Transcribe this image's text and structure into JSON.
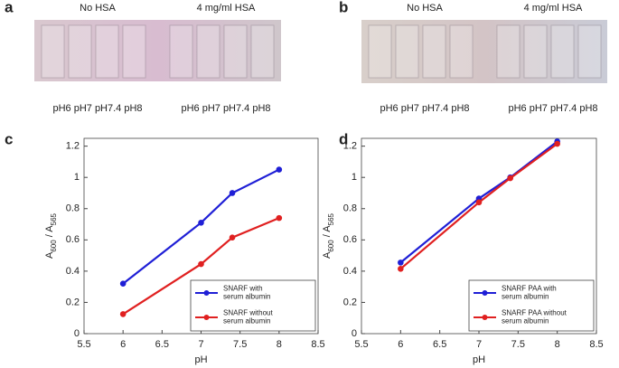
{
  "panels": [
    {
      "letter": "a",
      "labels": [
        "No HSA",
        "4 mg/ml HSA"
      ],
      "captions": [
        "pH6 pH7 pH7.4 pH8",
        "pH6 pH7 pH7.4 pH8"
      ]
    },
    {
      "letter": "b",
      "labels": [
        "No HSA",
        "4 mg/ml HSA"
      ],
      "captions": [
        "pH6 pH7 pH7.4 pH8",
        "pH6 pH7 pH7.4 pH8"
      ]
    }
  ],
  "chart_data": [
    {
      "type": "line",
      "letter": "c",
      "xlabel": "pH",
      "ylabel": [
        "A",
        "600",
        " / A",
        "565"
      ],
      "x": [
        6,
        7,
        7.4,
        8
      ],
      "series": [
        {
          "name": "SNARF with\nserum albumin",
          "color": "#1f1fd6",
          "values": [
            0.32,
            0.71,
            0.9,
            1.05
          ]
        },
        {
          "name": "SNARF without\nserum albumin",
          "color": "#e02020",
          "values": [
            0.125,
            0.445,
            0.615,
            0.74
          ]
        }
      ],
      "xlim": [
        5.5,
        8.5
      ],
      "xticks": [
        5.5,
        6,
        6.5,
        7,
        7.5,
        8,
        8.5
      ],
      "ylim": [
        0,
        1.25
      ],
      "yticks": [
        0,
        0.2,
        0.4,
        0.6,
        0.8,
        1,
        1.2
      ],
      "legend": "lower right"
    },
    {
      "type": "line",
      "letter": "d",
      "xlabel": "pH",
      "ylabel": [
        "A",
        "600",
        " / A",
        "565"
      ],
      "x": [
        6,
        7,
        7.4,
        8
      ],
      "series": [
        {
          "name": "SNARF PAA with\nserum albumin",
          "color": "#1f1fd6",
          "values": [
            0.455,
            0.865,
            1.0,
            1.23
          ]
        },
        {
          "name": "SNARF PAA without\nserum albumin",
          "color": "#e02020",
          "values": [
            0.415,
            0.84,
            0.995,
            1.215
          ]
        }
      ],
      "xlim": [
        5.5,
        8.5
      ],
      "xticks": [
        5.5,
        6,
        6.5,
        7,
        7.5,
        8,
        8.5
      ],
      "ylim": [
        0,
        1.25
      ],
      "yticks": [
        0,
        0.2,
        0.4,
        0.6,
        0.8,
        1,
        1.2
      ],
      "legend": "lower right"
    }
  ]
}
